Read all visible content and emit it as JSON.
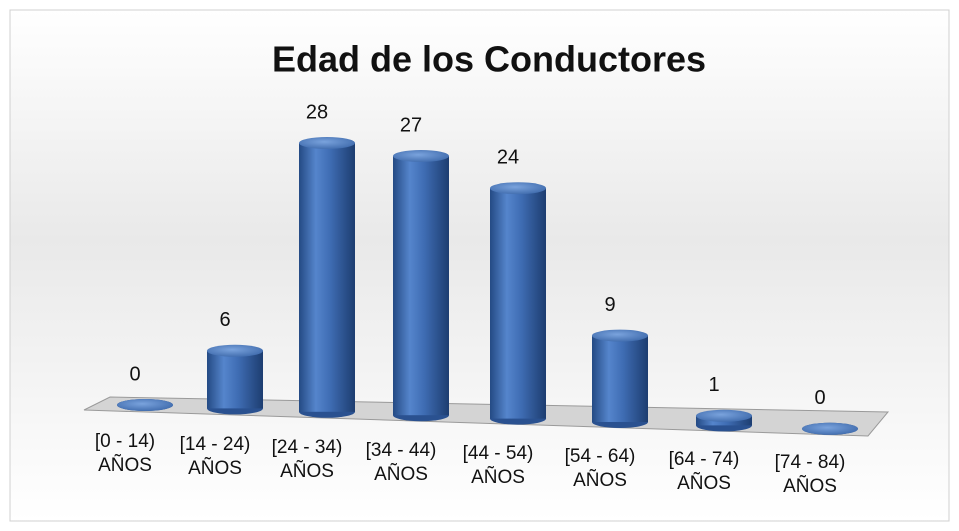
{
  "chart_data": {
    "type": "bar",
    "title": "Edad de los Conductores",
    "categories": [
      "[0 - 14) AÑOS",
      "[14 - 24) AÑOS",
      "[24 - 34) AÑOS",
      "[34 - 44) AÑOS",
      "[44 - 54) AÑOS",
      "[54 - 64) AÑOS",
      "[64 - 74) AÑOS",
      "[74 - 84) AÑOS"
    ],
    "values": [
      0,
      6,
      28,
      27,
      24,
      9,
      1,
      0
    ],
    "color": "#3a66a8"
  }
}
